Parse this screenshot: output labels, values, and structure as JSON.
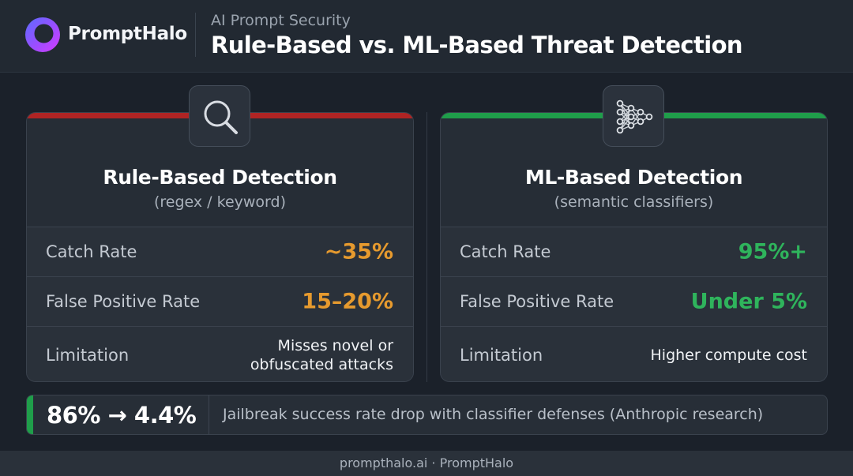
{
  "header": {
    "brand": "PromptHalo",
    "kicker": "AI Prompt Security",
    "title": "Rule-Based vs. ML-Based Threat Detection",
    "logo_icon": "halo-ring-icon"
  },
  "panels": [
    {
      "icon": "magnifier-icon",
      "accent_color": "#b02424",
      "title": "Rule-Based Detection",
      "subtitle": "(regex / keyword)",
      "rows": [
        {
          "label": "Catch Rate",
          "value": "~35%"
        },
        {
          "label": "False Positive Rate",
          "value": "15–20%"
        },
        {
          "label": "Limitation",
          "value": "Misses novel or\nobfuscated attacks"
        }
      ]
    },
    {
      "icon": "neural-network-icon",
      "accent_color": "#1f9e4a",
      "title": "ML-Based Detection",
      "subtitle": "(semantic classifiers)",
      "rows": [
        {
          "label": "Catch Rate",
          "value": "95%+"
        },
        {
          "label": "False Positive Rate",
          "value": "Under 5%"
        },
        {
          "label": "Limitation",
          "value": "Higher compute cost"
        }
      ]
    }
  ],
  "stat": {
    "value": "86% → 4.4%",
    "description": "Jailbreak success rate drop with classifier defenses (Anthropic research)",
    "accent_color": "#1f9e4a"
  },
  "footer": {
    "text": "prompthalo.ai · PromptHalo"
  }
}
